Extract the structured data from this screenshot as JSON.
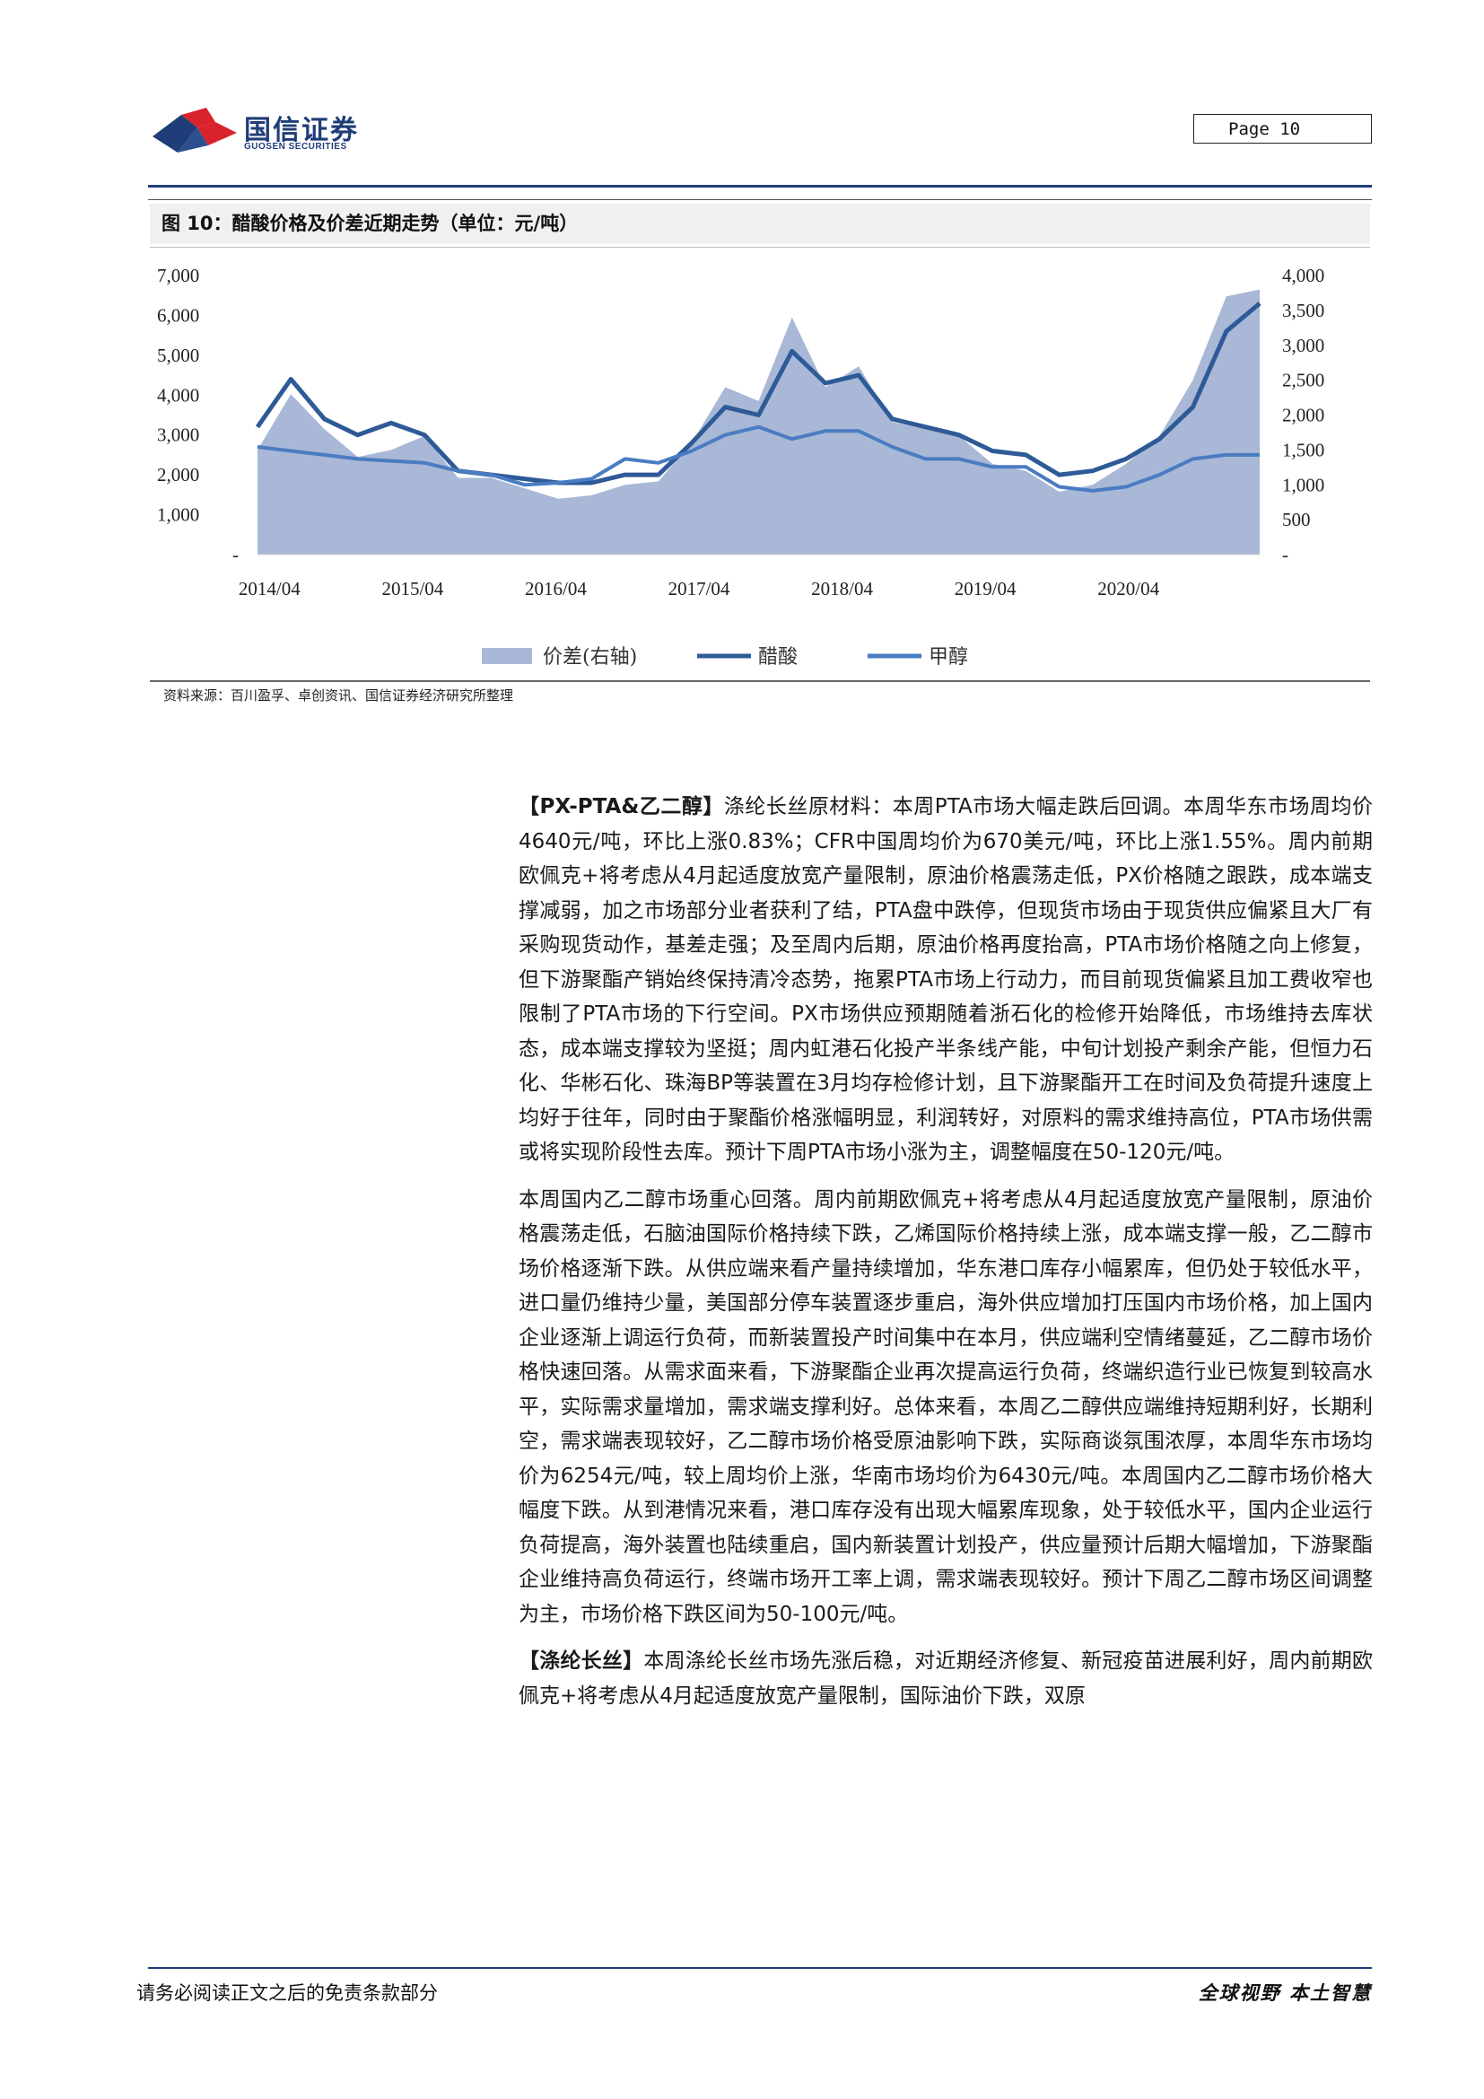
{
  "header": {
    "logo_cn": "国信证券",
    "logo_en": "GUOSEN SECURITIES",
    "page_label": "Page  10"
  },
  "figure": {
    "title": "图 10：醋酸价格及价差近期走势（单位：元/吨）",
    "source": "资料来源：百川盈孚、卓创资讯、国信证券经济研究所整理"
  },
  "colors": {
    "spread": "#a9b8d6",
    "acetic": "#2e5a97",
    "methanol": "#4a7cc2",
    "brand": "#1f3d78"
  },
  "chart_data": {
    "type": "line",
    "x": [
      "2014/03",
      "2014/06",
      "2014/09",
      "2014/12",
      "2015/03",
      "2015/06",
      "2015/09",
      "2015/12",
      "2016/03",
      "2016/06",
      "2016/09",
      "2016/12",
      "2017/03",
      "2017/06",
      "2017/09",
      "2017/12",
      "2018/03",
      "2018/06",
      "2018/09",
      "2018/12",
      "2019/03",
      "2019/06",
      "2019/09",
      "2019/12",
      "2020/03",
      "2020/06",
      "2020/09",
      "2020/12",
      "2021/01",
      "2021/02",
      "2021/03"
    ],
    "x_ticks": [
      "2014/04",
      "2015/04",
      "2016/04",
      "2017/04",
      "2018/04",
      "2019/04",
      "2020/04"
    ],
    "y_left": {
      "ticks": [
        "7,000",
        "6,000",
        "5,000",
        "4,000",
        "3,000",
        "2,000",
        "1,000",
        "-"
      ],
      "ylim": [
        0,
        7000
      ]
    },
    "y_right": {
      "ticks": [
        "4,000",
        "3,500",
        "3,000",
        "2,500",
        "2,000",
        "1,500",
        "1,000",
        "500",
        "-"
      ],
      "ylim": [
        0,
        4000
      ]
    },
    "series": [
      {
        "name": "价差(右轴)",
        "type": "area",
        "axis": "right",
        "values": [
          1500,
          2300,
          1800,
          1400,
          1500,
          1700,
          1100,
          1100,
          950,
          800,
          850,
          1000,
          1050,
          1600,
          2400,
          2200,
          3400,
          2400,
          2700,
          1900,
          1800,
          1700,
          1300,
          1200,
          900,
          1000,
          1300,
          1700,
          2500,
          3700,
          3800
        ]
      },
      {
        "name": "醋酸",
        "type": "line",
        "axis": "left",
        "values": [
          3200,
          4400,
          3400,
          3000,
          3300,
          3000,
          2100,
          2000,
          1900,
          1800,
          1800,
          2000,
          2000,
          2800,
          3700,
          3500,
          5100,
          4300,
          4500,
          3400,
          3200,
          3000,
          2600,
          2500,
          2000,
          2100,
          2400,
          2900,
          3700,
          5600,
          6300
        ]
      },
      {
        "name": "甲醇",
        "type": "line",
        "axis": "left",
        "values": [
          2700,
          2600,
          2500,
          2400,
          2350,
          2300,
          2100,
          2000,
          1750,
          1800,
          1900,
          2400,
          2300,
          2600,
          3000,
          3200,
          2900,
          3100,
          3100,
          2700,
          2400,
          2400,
          2200,
          2200,
          1700,
          1600,
          1700,
          2000,
          2400,
          2500,
          2500
        ]
      }
    ],
    "legend_position": "bottom"
  },
  "body": {
    "p1_tag": "【PX-PTA&乙二醇】",
    "p1": "涤纶长丝原材料：本周PTA市场大幅走跌后回调。本周华东市场周均价4640元/吨，环比上涨0.83%；CFR中国周均价为670美元/吨，环比上涨1.55%。周内前期欧佩克+将考虑从4月起适度放宽产量限制，原油价格震荡走低，PX价格随之跟跌，成本端支撑减弱，加之市场部分业者获利了结，PTA盘中跌停，但现货市场由于现货供应偏紧且大厂有采购现货动作，基差走强；及至周内后期，原油价格再度抬高，PTA市场价格随之向上修复，但下游聚酯产销始终保持清冷态势，拖累PTA市场上行动力，而目前现货偏紧且加工费收窄也限制了PTA市场的下行空间。PX市场供应预期随着浙石化的检修开始降低，市场维持去库状态，成本端支撑较为坚挺；周内虹港石化投产半条线产能，中旬计划投产剩余产能，但恒力石化、华彬石化、珠海BP等装置在3月均存检修计划，且下游聚酯开工在时间及负荷提升速度上均好于往年，同时由于聚酯价格涨幅明显，利润转好，对原料的需求维持高位，PTA市场供需或将实现阶段性去库。预计下周PTA市场小涨为主，调整幅度在50-120元/吨。",
    "p2": "本周国内乙二醇市场重心回落。周内前期欧佩克+将考虑从4月起适度放宽产量限制，原油价格震荡走低，石脑油国际价格持续下跌，乙烯国际价格持续上涨，成本端支撑一般，乙二醇市场价格逐渐下跌。从供应端来看产量持续增加，华东港口库存小幅累库，但仍处于较低水平，进口量仍维持少量，美国部分停车装置逐步重启，海外供应增加打压国内市场价格，加上国内企业逐渐上调运行负荷，而新装置投产时间集中在本月，供应端利空情绪蔓延，乙二醇市场价格快速回落。从需求面来看，下游聚酯企业再次提高运行负荷，终端织造行业已恢复到较高水平，实际需求量增加，需求端支撑利好。总体来看，本周乙二醇供应端维持短期利好，长期利空，需求端表现较好，乙二醇市场价格受原油影响下跌，实际商谈氛围浓厚，本周华东市场均价为6254元/吨，较上周均价上涨，华南市场均价为6430元/吨。本周国内乙二醇市场价格大幅度下跌。从到港情况来看，港口库存没有出现大幅累库现象，处于较低水平，国内企业运行负荷提高，海外装置也陆续重启，国内新装置计划投产，供应量预计后期大幅增加，下游聚酯企业维持高负荷运行，终端市场开工率上调，需求端表现较好。预计下周乙二醇市场区间调整为主，市场价格下跌区间为50-100元/吨。",
    "p3_tag": "【涤纶长丝】",
    "p3": "本周涤纶长丝市场先涨后稳，对近期经济修复、新冠疫苗进展利好，周内前期欧佩克+将考虑从4月起适度放宽产量限制，国际油价下跌，双原"
  },
  "footer": {
    "left": "请务必阅读正文之后的免责条款部分",
    "right": "全球视野  本土智慧"
  }
}
